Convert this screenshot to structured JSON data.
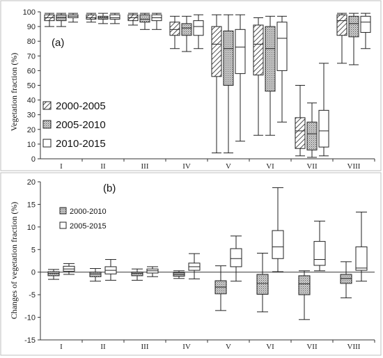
{
  "chart_data": [
    {
      "type": "boxplot",
      "panel_label": "(a)",
      "ylabel": "Vegetation fraction (%)",
      "xlabel": "",
      "ylim": [
        0,
        100
      ],
      "yticks": [
        0,
        10,
        20,
        30,
        40,
        50,
        60,
        70,
        80,
        90,
        100
      ],
      "categories": [
        "I",
        "II",
        "III",
        "IV",
        "V",
        "VI",
        "VII",
        "VIII"
      ],
      "legend_position": "left",
      "series": [
        {
          "name": "2000-2005",
          "pattern": "hatch",
          "boxes": [
            {
              "min": 90,
              "q1": 94,
              "median": 96,
              "q3": 98,
              "max": 99
            },
            {
              "min": 93,
              "q1": 95,
              "median": 96,
              "q3": 98,
              "max": 99
            },
            {
              "min": 91,
              "q1": 94,
              "median": 96,
              "q3": 98,
              "max": 99
            },
            {
              "min": 75,
              "q1": 84,
              "median": 88,
              "q3": 93,
              "max": 97
            },
            {
              "min": 4,
              "q1": 56,
              "median": 78,
              "q3": 90,
              "max": 98
            },
            {
              "min": 16,
              "q1": 57,
              "median": 78,
              "q3": 91,
              "max": 96
            },
            {
              "min": 2,
              "q1": 7,
              "median": 19,
              "q3": 28,
              "max": 50
            },
            {
              "min": 65,
              "q1": 84,
              "median": 94,
              "q3": 98,
              "max": 99
            }
          ]
        },
        {
          "name": "2005-2010",
          "pattern": "dots",
          "boxes": [
            {
              "min": 90,
              "q1": 94,
              "median": 96,
              "q3": 98,
              "max": 99
            },
            {
              "min": 92,
              "q1": 95,
              "median": 96,
              "q3": 97,
              "max": 99
            },
            {
              "min": 88,
              "q1": 93,
              "median": 95,
              "q3": 98,
              "max": 99
            },
            {
              "min": 73,
              "q1": 84,
              "median": 89,
              "q3": 92,
              "max": 97
            },
            {
              "min": 4,
              "q1": 50,
              "median": 75,
              "q3": 87,
              "max": 98
            },
            {
              "min": 16,
              "q1": 46,
              "median": 75,
              "q3": 90,
              "max": 97
            },
            {
              "min": 1,
              "q1": 6,
              "median": 17,
              "q3": 25,
              "max": 38
            },
            {
              "min": 64,
              "q1": 83,
              "median": 92,
              "q3": 97,
              "max": 99
            }
          ]
        },
        {
          "name": "2010-2015",
          "pattern": "blank",
          "boxes": [
            {
              "min": 93,
              "q1": 96,
              "median": 97,
              "q3": 98,
              "max": 99
            },
            {
              "min": 92,
              "q1": 95,
              "median": 96,
              "q3": 98,
              "max": 99
            },
            {
              "min": 88,
              "q1": 94,
              "median": 96,
              "q3": 98,
              "max": 99
            },
            {
              "min": 75,
              "q1": 84,
              "median": 90,
              "q3": 94,
              "max": 98
            },
            {
              "min": 12,
              "q1": 58,
              "median": 76,
              "q3": 88,
              "max": 98
            },
            {
              "min": 25,
              "q1": 60,
              "median": 82,
              "q3": 93,
              "max": 97
            },
            {
              "min": 2,
              "q1": 8,
              "median": 19,
              "q3": 33,
              "max": 65
            },
            {
              "min": 75,
              "q1": 86,
              "median": 93,
              "q3": 97,
              "max": 99
            }
          ]
        }
      ]
    },
    {
      "type": "boxplot",
      "panel_label": "(b)",
      "ylabel": "Changes of vegetation fraction (%)",
      "xlabel": "",
      "ylim": [
        -15,
        20
      ],
      "yticks": [
        -15,
        -10,
        -5,
        0,
        5,
        10,
        15,
        20
      ],
      "categories": [
        "I",
        "II",
        "III",
        "IV",
        "V",
        "VI",
        "VII",
        "VIII"
      ],
      "legend_position": "top-left",
      "series": [
        {
          "name": "2000-2010",
          "pattern": "dots",
          "boxes": [
            {
              "min": -1.6,
              "q1": -0.8,
              "median": -0.3,
              "q3": 0.1,
              "max": 0.6
            },
            {
              "min": -2.0,
              "q1": -1.0,
              "median": -0.4,
              "q3": 0.0,
              "max": 0.8
            },
            {
              "min": -1.8,
              "q1": -0.8,
              "median": -0.3,
              "q3": 0.0,
              "max": 0.7
            },
            {
              "min": -1.4,
              "q1": -0.9,
              "median": -0.5,
              "q3": -0.1,
              "max": 0.3
            },
            {
              "min": -8.5,
              "q1": -4.8,
              "median": -3.3,
              "q3": -1.9,
              "max": 1.4
            },
            {
              "min": -8.8,
              "q1": -4.9,
              "median": -2.5,
              "q3": -0.5,
              "max": 4.2
            },
            {
              "min": -10.5,
              "q1": -5.0,
              "median": -2.6,
              "q3": -0.8,
              "max": 0.3
            },
            {
              "min": -5.7,
              "q1": -2.5,
              "median": -1.4,
              "q3": -0.5,
              "max": 2.3
            }
          ]
        },
        {
          "name": "2005-2015",
          "pattern": "blank",
          "boxes": [
            {
              "min": -0.5,
              "q1": 0.2,
              "median": 0.7,
              "q3": 1.3,
              "max": 1.9
            },
            {
              "min": -1.8,
              "q1": -0.4,
              "median": 0.4,
              "q3": 1.2,
              "max": 2.8
            },
            {
              "min": -1.0,
              "q1": -0.2,
              "median": 0.3,
              "q3": 0.7,
              "max": 1.2
            },
            {
              "min": -1.5,
              "q1": 0.4,
              "median": 1.2,
              "q3": 2.0,
              "max": 4.1
            },
            {
              "min": -2.0,
              "q1": 1.2,
              "median": 3.0,
              "q3": 5.2,
              "max": 8.0
            },
            {
              "min": 0.1,
              "q1": 3.0,
              "median": 5.6,
              "q3": 9.2,
              "max": 18.7
            },
            {
              "min": 0.3,
              "q1": 1.5,
              "median": 2.8,
              "q3": 6.8,
              "max": 11.3
            },
            {
              "min": -2.0,
              "q1": 0.4,
              "median": 0.9,
              "q3": 5.6,
              "max": 13.3
            }
          ]
        }
      ]
    }
  ]
}
